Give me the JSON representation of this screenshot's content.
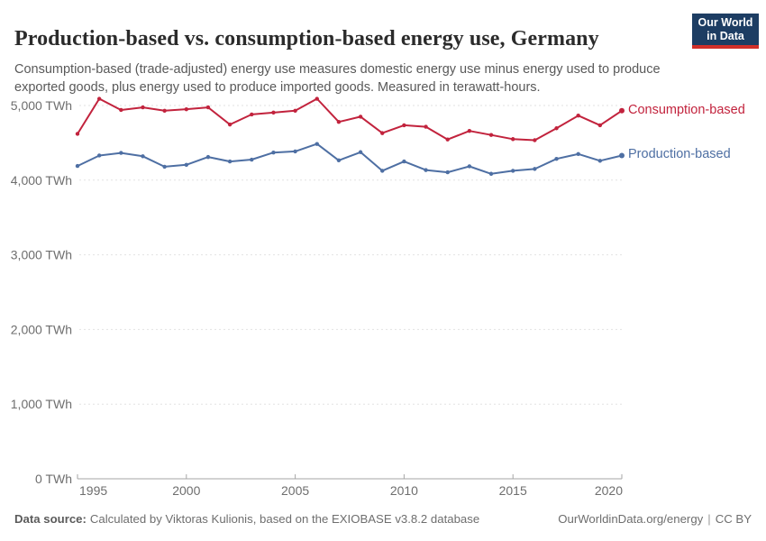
{
  "header": {
    "title": "Production-based vs. consumption-based energy use, Germany",
    "subtitle": "Consumption-based (trade-adjusted) energy use measures domestic energy use minus energy used to produce exported goods, plus energy used to produce imported goods. Measured in terawatt-hours.",
    "logo": {
      "line1": "Our World",
      "line2": "in Data",
      "bg_color": "#1d3d63",
      "accent_color": "#d12f29"
    }
  },
  "chart_data": {
    "type": "line",
    "title": "Production-based vs. consumption-based energy use, Germany",
    "subtitle": "Consumption-based (trade-adjusted) energy use measures domestic energy use minus energy used to produce exported goods, plus energy used to produce imported goods. Measured in terawatt-hours.",
    "unit": "TWh",
    "x": [
      1995,
      1996,
      1997,
      1998,
      1999,
      2000,
      2001,
      2002,
      2003,
      2004,
      2005,
      2006,
      2007,
      2008,
      2009,
      2010,
      2011,
      2012,
      2013,
      2014,
      2015,
      2016,
      2017,
      2018,
      2019,
      2020
    ],
    "series": [
      {
        "name": "Consumption-based",
        "color": "#c2233d",
        "values": [
          4620,
          5090,
          4940,
          4975,
          4930,
          4950,
          4975,
          4745,
          4880,
          4905,
          4930,
          5090,
          4780,
          4850,
          4630,
          4735,
          4715,
          4545,
          4660,
          4605,
          4550,
          4535,
          4695,
          4865,
          4735,
          4930
        ]
      },
      {
        "name": "Production-based",
        "color": "#4e6fa3",
        "values": [
          4190,
          4330,
          4365,
          4320,
          4180,
          4205,
          4310,
          4250,
          4275,
          4370,
          4385,
          4485,
          4265,
          4375,
          4125,
          4250,
          4135,
          4105,
          4185,
          4085,
          4125,
          4150,
          4285,
          4350,
          4260,
          4330
        ]
      }
    ],
    "xlabel": "",
    "ylabel": "",
    "ylim": [
      0,
      5200
    ],
    "yticks": [
      0,
      1000,
      2000,
      3000,
      4000,
      5000
    ],
    "ytick_labels": [
      "0 TWh",
      "1,000 TWh",
      "2,000 TWh",
      "3,000 TWh",
      "4,000 TWh",
      "5,000 TWh"
    ],
    "xticks": [
      1995,
      2000,
      2005,
      2010,
      2015,
      2020
    ],
    "xtick_labels": [
      "1995",
      "2000",
      "2005",
      "2010",
      "2015",
      "2020"
    ],
    "grid": "horizontal-dashed",
    "legend_position": "right-of-line-ends"
  },
  "footer": {
    "datasource_label": "Data source:",
    "datasource_text": "Calculated by Viktoras Kulionis, based on the EXIOBASE v3.8.2 database",
    "link": "OurWorldinData.org/energy",
    "divider": "|",
    "license": "CC BY"
  }
}
